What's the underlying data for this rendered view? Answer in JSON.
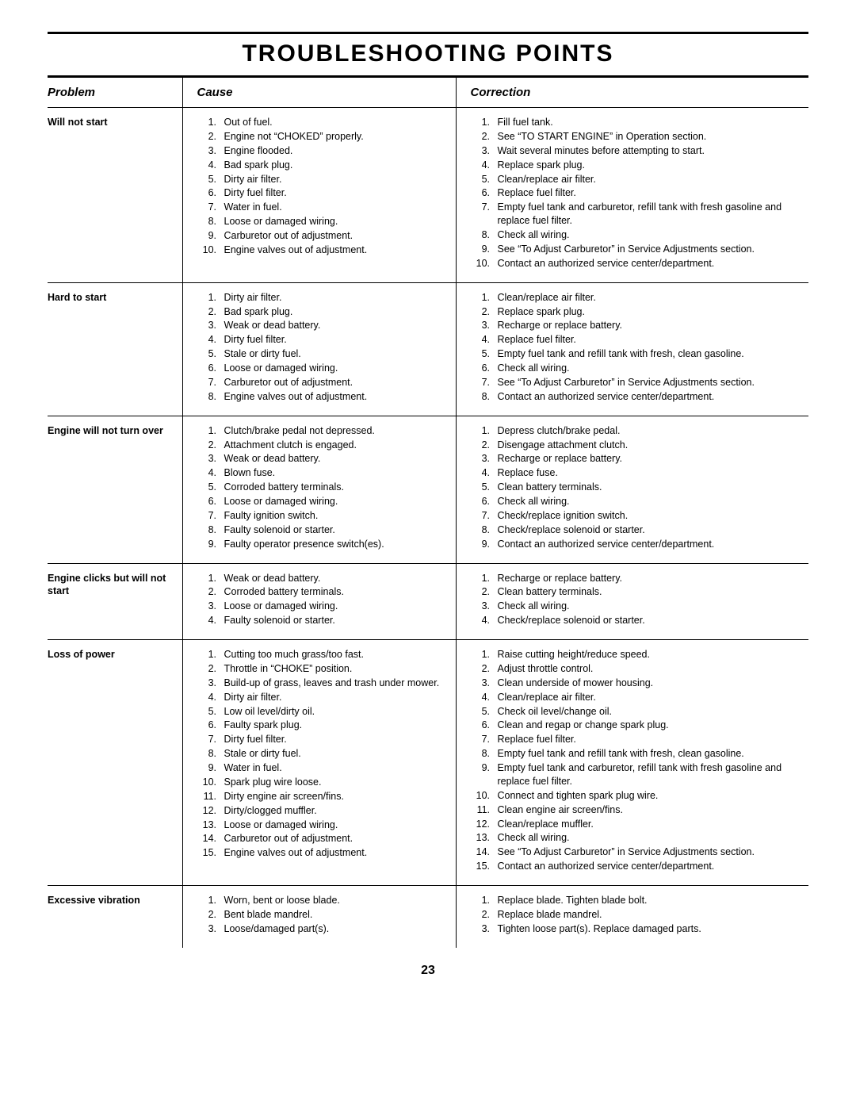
{
  "page": {
    "title": "TROUBLESHOOTING POINTS",
    "page_number": "23",
    "title_fontsize_pt": 30,
    "body_fontsize_pt": 12.5,
    "header_fontsize_pt": 15,
    "rule_color": "#000000",
    "background_color": "#ffffff"
  },
  "headers": {
    "problem": "Problem",
    "cause": "Cause",
    "correction": "Correction"
  },
  "rows": [
    {
      "problem": "Will not start",
      "causes": [
        "Out of fuel.",
        "Engine not “CHOKED” properly.",
        "Engine flooded.",
        "Bad spark plug.",
        "Dirty air filter.",
        "Dirty fuel filter.",
        "Water in fuel.",
        "Loose or damaged wiring.",
        "Carburetor out of adjustment.",
        "Engine valves out of adjustment."
      ],
      "corrections": [
        "Fill fuel tank.",
        "See “TO START ENGINE” in Operation section.",
        "Wait several minutes before attempting to start.",
        "Replace spark plug.",
        "Clean/replace air filter.",
        "Replace fuel filter.",
        "Empty fuel tank and carburetor, refill tank with fresh gasoline and replace fuel filter.",
        "Check all wiring.",
        "See “To Adjust Carburetor” in Service Adjustments section.",
        "Contact an authorized service center/department."
      ]
    },
    {
      "problem": "Hard to start",
      "causes": [
        "Dirty air filter.",
        "Bad spark plug.",
        "Weak or dead battery.",
        "Dirty fuel filter.",
        "Stale or dirty fuel.",
        "Loose or damaged wiring.",
        "Carburetor out of adjustment.",
        "Engine valves out of adjustment."
      ],
      "corrections": [
        "Clean/replace air filter.",
        "Replace spark plug.",
        "Recharge or replace battery.",
        "Replace fuel filter.",
        "Empty fuel tank and refill tank with fresh, clean gasoline.",
        "Check all wiring.",
        "See “To Adjust Carburetor” in Service Adjustments section.",
        "Contact an authorized service center/department."
      ]
    },
    {
      "problem": "Engine will not turn over",
      "causes": [
        "Clutch/brake pedal not depressed.",
        "Attachment clutch is engaged.",
        "Weak or dead battery.",
        "Blown fuse.",
        "Corroded battery terminals.",
        "Loose or damaged wiring.",
        "Faulty ignition switch.",
        "Faulty solenoid or starter.",
        "Faulty operator presence switch(es)."
      ],
      "corrections": [
        "Depress clutch/brake pedal.",
        "Disengage attachment clutch.",
        "Recharge or replace battery.",
        "Replace fuse.",
        "Clean battery terminals.",
        "Check all wiring.",
        "Check/replace ignition switch.",
        "Check/replace solenoid or starter.",
        "Contact an authorized service center/department."
      ]
    },
    {
      "problem": "Engine clicks but will not start",
      "causes": [
        "Weak or dead battery.",
        "Corroded battery terminals.",
        "Loose or damaged wiring.",
        "Faulty solenoid or starter."
      ],
      "corrections": [
        "Recharge or replace battery.",
        "Clean battery terminals.",
        "Check all wiring.",
        "Check/replace solenoid or starter."
      ]
    },
    {
      "problem": "Loss of power",
      "causes": [
        "Cutting too much grass/too fast.",
        "Throttle in “CHOKE” position.",
        "Build-up of grass, leaves and trash under mower.",
        "Dirty air filter.",
        "Low oil level/dirty oil.",
        "Faulty spark plug.",
        "Dirty fuel filter.",
        "Stale or dirty fuel.",
        "Water in fuel.",
        "Spark plug wire loose.",
        "Dirty engine air screen/fins.",
        "Dirty/clogged muffler.",
        "Loose or damaged wiring.",
        "Carburetor out of adjustment.",
        "Engine valves out of adjustment."
      ],
      "corrections": [
        "Raise cutting height/reduce speed.",
        "Adjust throttle control.",
        "Clean underside of mower housing.",
        "Clean/replace air filter.",
        "Check oil level/change oil.",
        "Clean and regap or change spark plug.",
        "Replace fuel filter.",
        "Empty fuel tank and refill tank with fresh, clean gasoline.",
        "Empty fuel tank and carburetor, refill tank with fresh gasoline and replace fuel filter.",
        "Connect and tighten spark plug wire.",
        "Clean engine air screen/fins.",
        "Clean/replace muffler.",
        "Check all wiring.",
        "See “To Adjust Carburetor” in Service Adjustments section.",
        "Contact an authorized service center/department."
      ]
    },
    {
      "problem": "Excessive vibration",
      "causes": [
        "Worn, bent or loose blade.",
        "Bent blade mandrel.",
        "Loose/damaged part(s)."
      ],
      "corrections": [
        "Replace blade.  Tighten blade bolt.",
        "Replace blade mandrel.",
        "Tighten loose part(s).  Replace damaged parts."
      ],
      "no_bottom_border": true
    }
  ]
}
